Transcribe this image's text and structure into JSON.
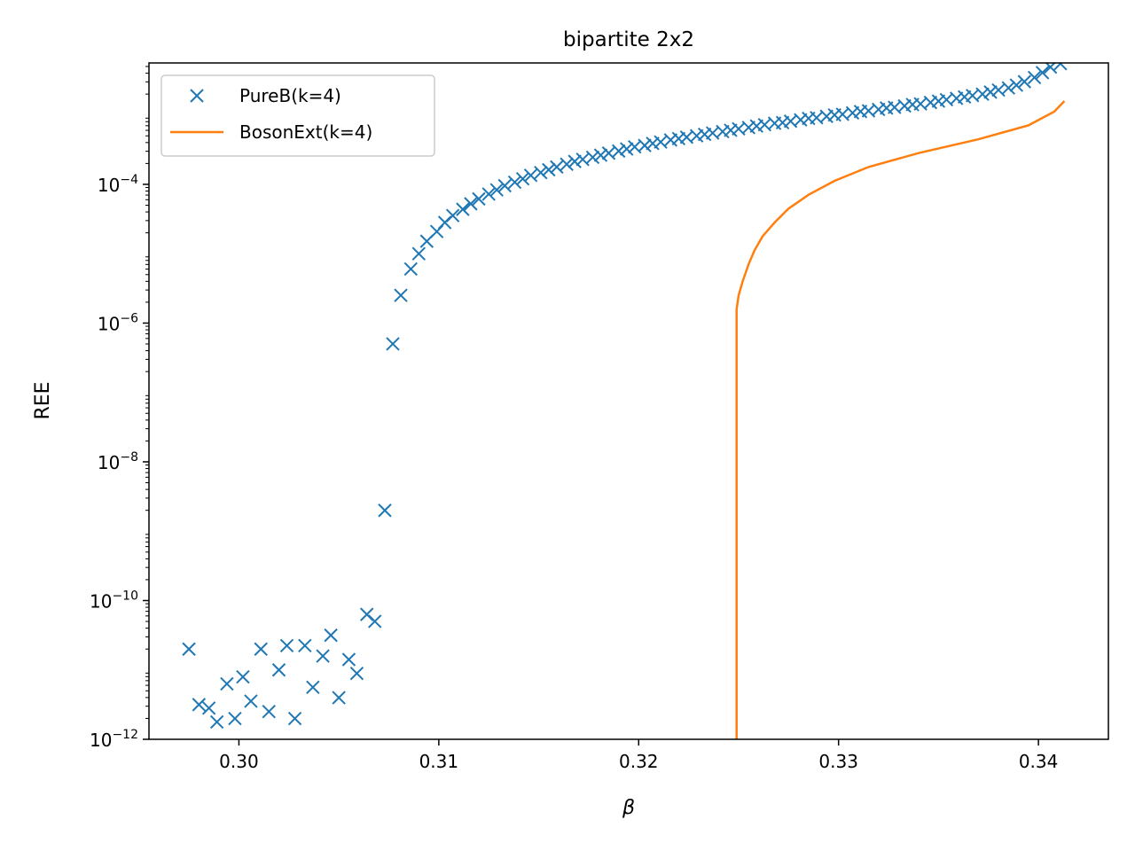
{
  "chart_data": {
    "type": "scatter",
    "title": "bipartite 2x2",
    "xlabel": "β",
    "ylabel": "REE",
    "xlim": [
      0.2955,
      0.3435
    ],
    "ylim_log10": [
      -12,
      -2.25
    ],
    "yscale": "log",
    "grid": false,
    "legend_position": "top-left",
    "x_ticks": [
      {
        "value": 0.3,
        "label": "0.30"
      },
      {
        "value": 0.31,
        "label": "0.31"
      },
      {
        "value": 0.32,
        "label": "0.32"
      },
      {
        "value": 0.33,
        "label": "0.33"
      },
      {
        "value": 0.34,
        "label": "0.34"
      }
    ],
    "y_ticks": [
      {
        "exp": -12,
        "base": "10",
        "sup": "−12"
      },
      {
        "exp": -10,
        "base": "10",
        "sup": "−10"
      },
      {
        "exp": -8,
        "base": "10",
        "sup": "−8"
      },
      {
        "exp": -6,
        "base": "10",
        "sup": "−6"
      },
      {
        "exp": -4,
        "base": "10",
        "sup": "−4"
      }
    ],
    "series": [
      {
        "name": "PureB(k=4)",
        "kind": "markers",
        "marker": "x",
        "color": "#1f77b4",
        "points_log10": [
          [
            0.2975,
            -10.7
          ],
          [
            0.298,
            -11.5
          ],
          [
            0.2985,
            -11.55
          ],
          [
            0.2989,
            -11.75
          ],
          [
            0.2994,
            -11.2
          ],
          [
            0.2998,
            -11.7
          ],
          [
            0.3002,
            -11.1
          ],
          [
            0.3006,
            -11.45
          ],
          [
            0.3011,
            -10.7
          ],
          [
            0.3015,
            -11.6
          ],
          [
            0.302,
            -11.0
          ],
          [
            0.3024,
            -10.65
          ],
          [
            0.3028,
            -11.7
          ],
          [
            0.3033,
            -10.65
          ],
          [
            0.3037,
            -11.25
          ],
          [
            0.3042,
            -10.8
          ],
          [
            0.3046,
            -10.5
          ],
          [
            0.305,
            -11.4
          ],
          [
            0.3055,
            -10.85
          ],
          [
            0.3059,
            -11.05
          ],
          [
            0.3064,
            -10.2
          ],
          [
            0.3068,
            -10.3
          ],
          [
            0.3073,
            -8.7
          ],
          [
            0.3077,
            -6.3
          ],
          [
            0.3081,
            -5.6
          ],
          [
            0.3086,
            -5.22
          ],
          [
            0.309,
            -5.0
          ],
          [
            0.3094,
            -4.82
          ],
          [
            0.3099,
            -4.68
          ],
          [
            0.3103,
            -4.55
          ],
          [
            0.3107,
            -4.45
          ],
          [
            0.3112,
            -4.36
          ],
          [
            0.3116,
            -4.28
          ],
          [
            0.312,
            -4.21
          ],
          [
            0.3125,
            -4.14
          ],
          [
            0.3129,
            -4.08
          ],
          [
            0.3133,
            -4.02
          ],
          [
            0.3138,
            -3.97
          ],
          [
            0.3142,
            -3.92
          ],
          [
            0.3146,
            -3.87
          ],
          [
            0.3151,
            -3.83
          ],
          [
            0.3155,
            -3.79
          ],
          [
            0.3159,
            -3.75
          ],
          [
            0.3164,
            -3.71
          ],
          [
            0.3168,
            -3.67
          ],
          [
            0.3172,
            -3.64
          ],
          [
            0.3177,
            -3.61
          ],
          [
            0.3181,
            -3.58
          ],
          [
            0.3185,
            -3.55
          ],
          [
            0.319,
            -3.52
          ],
          [
            0.3194,
            -3.49
          ],
          [
            0.3198,
            -3.46
          ],
          [
            0.3203,
            -3.44
          ],
          [
            0.3207,
            -3.41
          ],
          [
            0.3211,
            -3.39
          ],
          [
            0.3216,
            -3.36
          ],
          [
            0.322,
            -3.34
          ],
          [
            0.3224,
            -3.32
          ],
          [
            0.3229,
            -3.3
          ],
          [
            0.3233,
            -3.28
          ],
          [
            0.3237,
            -3.26
          ],
          [
            0.3242,
            -3.24
          ],
          [
            0.3246,
            -3.22
          ],
          [
            0.325,
            -3.2
          ],
          [
            0.3255,
            -3.18
          ],
          [
            0.3259,
            -3.16
          ],
          [
            0.3263,
            -3.14
          ],
          [
            0.3268,
            -3.12
          ],
          [
            0.3272,
            -3.11
          ],
          [
            0.3276,
            -3.09
          ],
          [
            0.3281,
            -3.07
          ],
          [
            0.3285,
            -3.05
          ],
          [
            0.3289,
            -3.04
          ],
          [
            0.3294,
            -3.02
          ],
          [
            0.3298,
            -3.0
          ],
          [
            0.3302,
            -2.99
          ],
          [
            0.3307,
            -2.97
          ],
          [
            0.3311,
            -2.95
          ],
          [
            0.3315,
            -2.94
          ],
          [
            0.332,
            -2.92
          ],
          [
            0.3324,
            -2.9
          ],
          [
            0.3328,
            -2.89
          ],
          [
            0.3333,
            -2.87
          ],
          [
            0.3337,
            -2.85
          ],
          [
            0.3341,
            -2.84
          ],
          [
            0.3346,
            -2.82
          ],
          [
            0.335,
            -2.8
          ],
          [
            0.3354,
            -2.78
          ],
          [
            0.3359,
            -2.76
          ],
          [
            0.3363,
            -2.74
          ],
          [
            0.3367,
            -2.72
          ],
          [
            0.3372,
            -2.7
          ],
          [
            0.3376,
            -2.67
          ],
          [
            0.338,
            -2.64
          ],
          [
            0.3385,
            -2.61
          ],
          [
            0.3389,
            -2.57
          ],
          [
            0.3393,
            -2.52
          ],
          [
            0.3398,
            -2.46
          ],
          [
            0.3402,
            -2.39
          ],
          [
            0.3406,
            -2.31
          ],
          [
            0.3411,
            -2.26
          ]
        ]
      },
      {
        "name": "BosonExt(k=4)",
        "kind": "line",
        "color": "#ff7f0e",
        "points_log10": [
          [
            0.3249,
            -12.0
          ],
          [
            0.3249,
            -5.8
          ],
          [
            0.325,
            -5.6
          ],
          [
            0.3252,
            -5.4
          ],
          [
            0.3255,
            -5.15
          ],
          [
            0.3258,
            -4.95
          ],
          [
            0.3262,
            -4.75
          ],
          [
            0.3268,
            -4.55
          ],
          [
            0.3275,
            -4.35
          ],
          [
            0.3285,
            -4.15
          ],
          [
            0.3298,
            -3.95
          ],
          [
            0.3315,
            -3.75
          ],
          [
            0.334,
            -3.55
          ],
          [
            0.337,
            -3.35
          ],
          [
            0.3395,
            -3.15
          ],
          [
            0.3408,
            -2.95
          ],
          [
            0.3413,
            -2.8
          ]
        ]
      }
    ]
  }
}
